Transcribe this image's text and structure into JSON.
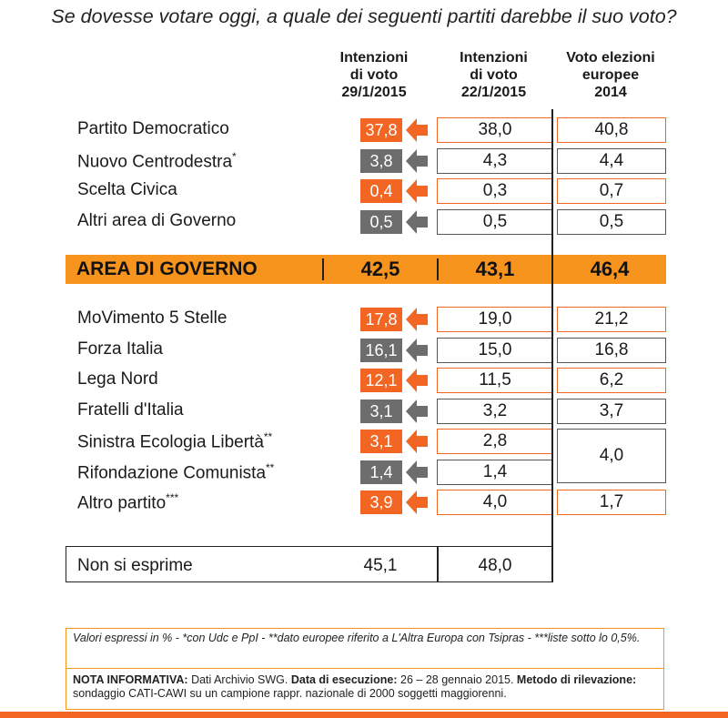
{
  "title": "Se dovesse votare oggi, a quale dei seguenti partiti darebbe il suo voto?",
  "headers": {
    "col1": [
      "Intenzioni",
      "di voto",
      "29/1/2015"
    ],
    "col2": [
      "Intenzioni",
      "di voto",
      "22/1/2015"
    ],
    "col3": [
      "Voto elezioni",
      "europee",
      "2014"
    ]
  },
  "colors": {
    "orange": "#f26522",
    "grey": "#6d6d6d",
    "area_bar": "#f7941d"
  },
  "chart_data": {
    "type": "table",
    "columns": [
      "Intenzioni di voto 29/1/2015",
      "Intenzioni di voto 22/1/2015",
      "Voto elezioni europee 2014"
    ],
    "group1": [
      {
        "party": "Partito Democratico",
        "sup": "",
        "v1": "37,8",
        "v2": "38,0",
        "v3": "40,8",
        "color": "orange"
      },
      {
        "party": "Nuovo Centrodestra",
        "sup": "*",
        "v1": "3,8",
        "v2": "4,3",
        "v3": "4,4",
        "color": "grey"
      },
      {
        "party": "Scelta Civica",
        "sup": "",
        "v1": "0,4",
        "v2": "0,3",
        "v3": "0,7",
        "color": "orange"
      },
      {
        "party": "Altri area di Governo",
        "sup": "",
        "v1": "0,5",
        "v2": "0,5",
        "v3": "0,5",
        "color": "grey"
      }
    ],
    "area": {
      "label": "AREA DI GOVERNO",
      "v1": "42,5",
      "v2": "43,1",
      "v3": "46,4"
    },
    "group2": [
      {
        "party": "MoVimento 5 Stelle",
        "sup": "",
        "v1": "17,8",
        "v2": "19,0",
        "v3": "21,2",
        "color": "orange"
      },
      {
        "party": "Forza Italia",
        "sup": "",
        "v1": "16,1",
        "v2": "15,0",
        "v3": "16,8",
        "color": "grey"
      },
      {
        "party": "Lega Nord",
        "sup": "",
        "v1": "12,1",
        "v2": "11,5",
        "v3": "6,2",
        "color": "orange"
      },
      {
        "party": "Fratelli d'Italia",
        "sup": "",
        "v1": "3,1",
        "v2": "3,2",
        "v3": "3,7",
        "color": "grey"
      },
      {
        "party": "Sinistra Ecologia Libertà",
        "sup": "**",
        "v1": "3,1",
        "v2": "2,8",
        "v3": "",
        "color": "orange"
      },
      {
        "party": "Rifondazione Comunista",
        "sup": "**",
        "v1": "1,4",
        "v2": "1,4",
        "v3": "",
        "color": "grey"
      },
      {
        "party": "Altro partito",
        "sup": "***",
        "v1": "3,9",
        "v2": "4,0",
        "v3": "1,7",
        "color": "orange"
      }
    ],
    "merged_europee_sel_rc": "4,0",
    "non_si_esprime": {
      "label": "Non si esprime",
      "v1": "45,1",
      "v2": "48,0"
    }
  },
  "notes": {
    "line1": "Valori espressi in % - *con Udc e PpI  - **dato europee riferito a L'Altra Europa con Tsipras - ***liste sotto lo 0,5%.",
    "nota_label": "NOTA INFORMATIVA:",
    "nota_text1": " Dati Archivio SWG. ",
    "data_label": "Data di esecuzione:",
    "data_text": " 26 – 28 gennaio 2015. ",
    "metodo_label": "Metodo di rilevazione:",
    "metodo_text": " sondaggio CATI-CAWI su un campione rappr. nazionale di 2000 soggetti maggiorenni."
  }
}
